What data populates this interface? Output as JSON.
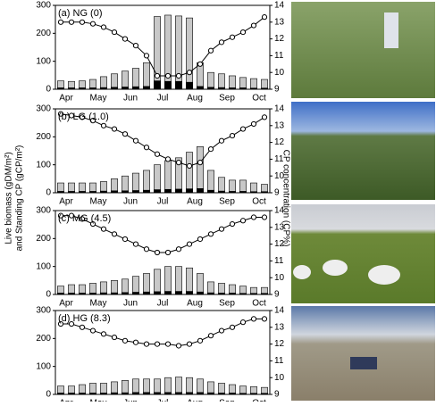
{
  "shared_labels": {
    "y_left": [
      "Live biomass (gDM/m²)",
      "and Standing CP (gCP/m²)"
    ],
    "y_right": "CP concentration (CP%)"
  },
  "chart_data": [
    {
      "type": "bar",
      "title": "(a) NG (0)",
      "xticks": [
        "Apr",
        "May",
        "Jun",
        "Jul",
        "Aug",
        "Sep",
        "Oct"
      ],
      "ylim": [
        0,
        300
      ],
      "yticks": [
        0,
        100,
        200,
        300
      ],
      "y2lim": [
        9,
        14
      ],
      "y2ticks": [
        9,
        10,
        11,
        12,
        13,
        14
      ],
      "series": [
        {
          "color": "#c8c8c8",
          "values": [
            30,
            28,
            30,
            35,
            45,
            55,
            65,
            75,
            95,
            260,
            265,
            262,
            255,
            95,
            60,
            55,
            48,
            42,
            38,
            35
          ]
        },
        {
          "color": "#000000",
          "values": [
            5,
            5,
            5,
            5,
            6,
            7,
            8,
            9,
            10,
            30,
            28,
            28,
            25,
            10,
            7,
            6,
            5,
            5,
            4,
            4
          ]
        },
        {
          "color": "#000000",
          "axis": "y2",
          "values": [
            13,
            13,
            13,
            12.9,
            12.7,
            12.4,
            12,
            11.6,
            11,
            9.8,
            9.8,
            9.8,
            10,
            10.5,
            11.3,
            11.8,
            12.1,
            12.4,
            12.8,
            13.3
          ]
        }
      ]
    },
    {
      "type": "bar",
      "title": "(b) LG (1.0)",
      "xticks": [
        "Apr",
        "May",
        "Jun",
        "Jul",
        "Aug",
        "Sep",
        "Oct"
      ],
      "ylim": [
        0,
        300
      ],
      "yticks": [
        0,
        100,
        200,
        300
      ],
      "y2lim": [
        9,
        14
      ],
      "y2ticks": [
        9,
        10,
        11,
        12,
        13,
        14
      ],
      "series": [
        {
          "color": "#c8c8c8",
          "values": [
            35,
            35,
            35,
            35,
            40,
            50,
            60,
            70,
            80,
            100,
            115,
            125,
            145,
            165,
            80,
            55,
            45,
            45,
            35,
            30
          ]
        },
        {
          "color": "#000000",
          "values": [
            5,
            5,
            5,
            5,
            6,
            7,
            7,
            8,
            9,
            11,
            12,
            13,
            14,
            15,
            9,
            6,
            5,
            5,
            4,
            4
          ]
        },
        {
          "color": "#000000",
          "axis": "y2",
          "values": [
            13.7,
            13.6,
            13.5,
            13.3,
            13,
            12.8,
            12.5,
            12.1,
            11.7,
            11.3,
            11,
            10.8,
            10.6,
            10.8,
            11.6,
            12.1,
            12.4,
            12.8,
            13.1,
            13.5
          ]
        }
      ]
    },
    {
      "type": "bar",
      "title": "(c) MG (4.5)",
      "xticks": [
        "Apr",
        "May",
        "Jun",
        "Jul",
        "Aug",
        "Sep",
        "Oct"
      ],
      "ylim": [
        0,
        300
      ],
      "yticks": [
        0,
        100,
        200,
        300
      ],
      "y2lim": [
        9,
        14
      ],
      "y2ticks": [
        9,
        10,
        11,
        12,
        13,
        14
      ],
      "series": [
        {
          "color": "#c8c8c8",
          "values": [
            30,
            35,
            35,
            40,
            45,
            50,
            55,
            65,
            75,
            90,
            100,
            100,
            95,
            75,
            45,
            40,
            35,
            30,
            25,
            25
          ]
        },
        {
          "color": "#000000",
          "values": [
            5,
            5,
            5,
            5,
            6,
            6,
            7,
            8,
            9,
            10,
            11,
            11,
            11,
            9,
            6,
            5,
            5,
            4,
            4,
            4
          ]
        },
        {
          "color": "#000000",
          "axis": "y2",
          "values": [
            13.7,
            13.7,
            13.5,
            13.2,
            12.9,
            12.6,
            12.3,
            12,
            11.7,
            11.5,
            11.5,
            11.7,
            12,
            12.3,
            12.6,
            12.9,
            13.2,
            13.4,
            13.6,
            13.6
          ]
        }
      ]
    },
    {
      "type": "bar",
      "title": "(d) HG (8.3)",
      "xticks": [
        "Apr",
        "May",
        "Jun",
        "Jul",
        "Aug",
        "Sep",
        "Oct"
      ],
      "ylim": [
        0,
        300
      ],
      "yticks": [
        0,
        100,
        200,
        300
      ],
      "y2lim": [
        9,
        14
      ],
      "y2ticks": [
        9,
        10,
        11,
        12,
        13,
        14
      ],
      "series": [
        {
          "color": "#c8c8c8",
          "values": [
            30,
            30,
            35,
            40,
            40,
            45,
            50,
            55,
            55,
            55,
            60,
            62,
            60,
            55,
            45,
            40,
            35,
            30,
            28,
            25
          ]
        },
        {
          "color": "#000000",
          "values": [
            5,
            5,
            5,
            5,
            5,
            6,
            6,
            7,
            7,
            7,
            7,
            7,
            7,
            7,
            6,
            5,
            5,
            4,
            4,
            4
          ]
        },
        {
          "color": "#000000",
          "axis": "y2",
          "values": [
            13.2,
            13.2,
            13,
            12.8,
            12.6,
            12.4,
            12.2,
            12.1,
            12,
            12,
            12,
            11.9,
            12,
            12.2,
            12.5,
            12.8,
            13,
            13.3,
            13.5,
            13.5
          ]
        }
      ]
    }
  ]
}
